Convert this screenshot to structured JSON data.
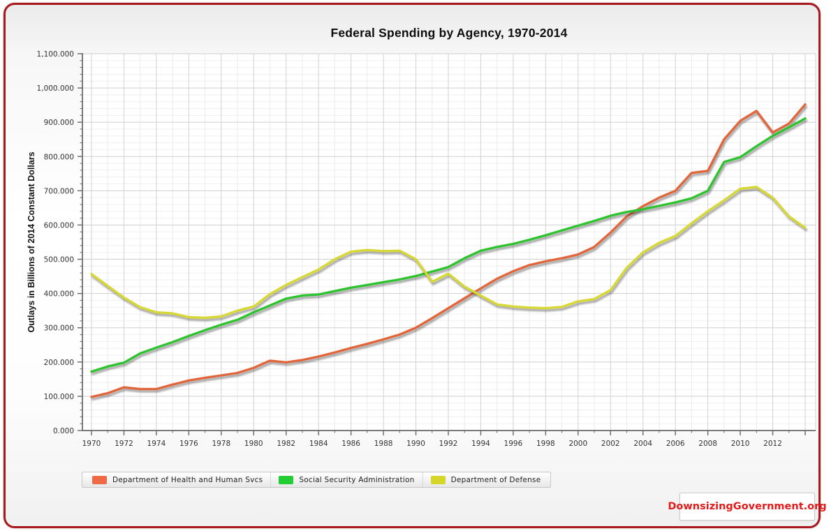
{
  "page": {
    "border_color": "#a6191e",
    "plot_background": "#ffffff",
    "grid_major_color": "#cfcfcf",
    "grid_minor_color": "#ededed",
    "axis_color": "#7a7a7a",
    "tick_label_color": "#333333"
  },
  "chart_data": {
    "type": "line",
    "title": "Federal Spending by Agency, 1970-2014",
    "ylabel": "Outlays in Billions of 2014 Constant Dollars",
    "xlim": [
      1970,
      2014
    ],
    "ylim": [
      0,
      1100
    ],
    "y_major_step": 100,
    "y_minor_step": 20,
    "x_label_step": 2,
    "x_label_first": 1970,
    "x_label_last": 2012,
    "y_tick_format": "thousands-comma-3-decimals",
    "grid": true,
    "legend_position": "bottom-left",
    "x": [
      1970,
      1971,
      1972,
      1973,
      1974,
      1975,
      1976,
      1977,
      1978,
      1979,
      1980,
      1981,
      1982,
      1983,
      1984,
      1985,
      1986,
      1987,
      1988,
      1989,
      1990,
      1991,
      1992,
      1993,
      1994,
      1995,
      1996,
      1997,
      1998,
      1999,
      2000,
      2001,
      2002,
      2003,
      2004,
      2005,
      2006,
      2007,
      2008,
      2009,
      2010,
      2011,
      2012,
      2013,
      2014
    ],
    "series": [
      {
        "name": "Department of Health and Human Svcs",
        "color": "#e2663c",
        "swatch_color": "#ee6a44",
        "values": [
          98,
          109,
          126,
          121,
          121,
          134,
          146,
          154,
          161,
          168,
          183,
          204,
          199,
          206,
          216,
          228,
          241,
          253,
          266,
          280,
          300,
          328,
          357,
          386,
          415,
          443,
          465,
          483,
          494,
          503,
          514,
          536,
          578,
          625,
          655,
          680,
          700,
          752,
          758,
          850,
          904,
          933,
          870,
          896,
          952
        ]
      },
      {
        "name": "Social Security Administration",
        "color": "#2fc42f",
        "swatch_color": "#22cc33",
        "values": [
          172,
          187,
          198,
          225,
          242,
          258,
          276,
          293,
          309,
          323,
          345,
          365,
          385,
          394,
          397,
          407,
          417,
          425,
          433,
          441,
          451,
          464,
          477,
          503,
          525,
          536,
          545,
          557,
          570,
          584,
          598,
          612,
          627,
          638,
          646,
          656,
          666,
          678,
          700,
          784,
          798,
          830,
          860,
          885,
          911
        ]
      },
      {
        "name": "Department of Defense",
        "color": "#d8d835",
        "swatch_color": "#d6d629",
        "values": [
          457,
          422,
          388,
          360,
          345,
          342,
          331,
          329,
          333,
          350,
          362,
          398,
          425,
          448,
          470,
          500,
          522,
          527,
          524,
          525,
          500,
          434,
          458,
          420,
          394,
          368,
          362,
          359,
          357,
          361,
          377,
          384,
          410,
          475,
          520,
          548,
          568,
          605,
          640,
          672,
          706,
          711,
          680,
          625,
          592
        ]
      }
    ]
  },
  "branding": {
    "logo_text": "DownsizingGovernment.org"
  }
}
